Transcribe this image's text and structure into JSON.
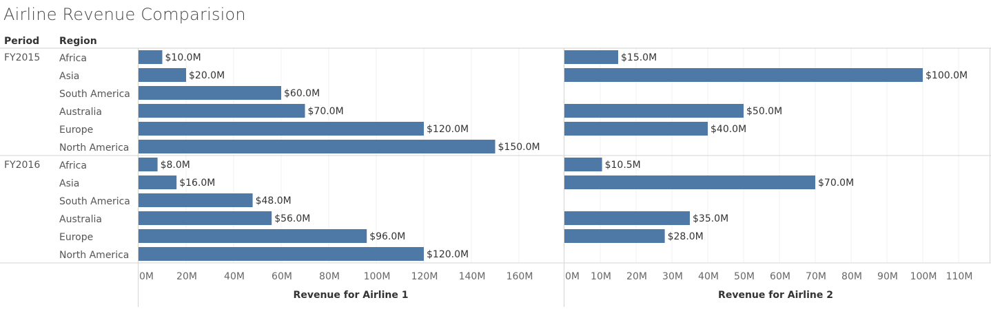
{
  "title": "Airline Revenue Comparision",
  "headers": {
    "period": "Period",
    "region": "Region"
  },
  "chart_data": {
    "type": "bar",
    "orientation": "horizontal",
    "periods": [
      "FY2015",
      "FY2016"
    ],
    "regions": [
      "Africa",
      "Asia",
      "South America",
      "Australia",
      "Europe",
      "North America"
    ],
    "bar_color": "#4e79a7",
    "panels": [
      {
        "name": "Revenue for Airline 1",
        "xlabel": "Revenue for Airline 1",
        "xlim": [
          0,
          175
        ],
        "ticks": [
          0,
          20,
          40,
          60,
          80,
          100,
          120,
          140,
          160
        ],
        "tick_labels": [
          "0M",
          "20M",
          "40M",
          "60M",
          "80M",
          "100M",
          "120M",
          "140M",
          "160M"
        ],
        "values": {
          "FY2015": [
            10,
            20,
            60,
            70,
            120,
            150
          ],
          "FY2016": [
            8,
            16,
            48,
            56,
            96,
            120
          ]
        },
        "labels": {
          "FY2015": [
            "$10.0M",
            "$20.0M",
            "$60.0M",
            "$70.0M",
            "$120.0M",
            "$150.0M"
          ],
          "FY2016": [
            "$8.0M",
            "$16.0M",
            "$48.0M",
            "$56.0M",
            "$96.0M",
            "$120.0M"
          ]
        }
      },
      {
        "name": "Revenue for Airline 2",
        "xlabel": "Revenue for Airline 2",
        "xlim": [
          0,
          118
        ],
        "ticks": [
          0,
          10,
          20,
          30,
          40,
          50,
          60,
          70,
          80,
          90,
          100,
          110
        ],
        "tick_labels": [
          "0M",
          "10M",
          "20M",
          "30M",
          "40M",
          "50M",
          "60M",
          "70M",
          "80M",
          "90M",
          "100M",
          "110M"
        ],
        "values": {
          "FY2015": [
            15,
            100,
            null,
            50,
            40,
            null
          ],
          "FY2016": [
            10.5,
            70,
            null,
            35,
            28,
            null
          ]
        },
        "labels": {
          "FY2015": [
            "$15.0M",
            "$100.0M",
            "",
            "$50.0M",
            "$40.0M",
            ""
          ],
          "FY2016": [
            "$10.5M",
            "$70.0M",
            "",
            "$35.0M",
            "$28.0M",
            ""
          ]
        }
      }
    ],
    "grid": true
  }
}
